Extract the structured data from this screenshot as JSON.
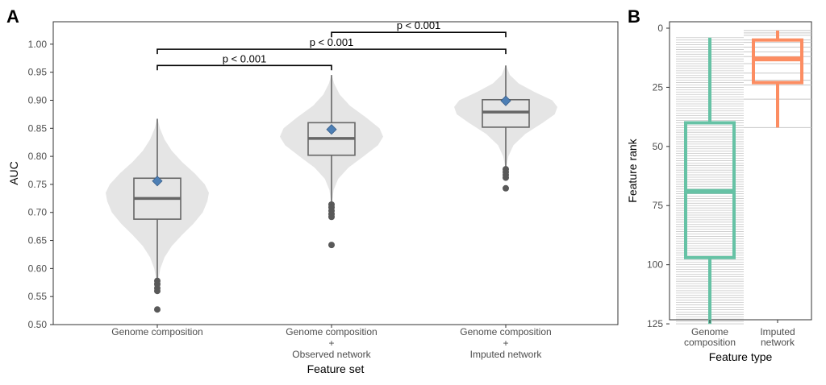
{
  "chart_data": [
    {
      "panel": "A",
      "type": "violin-box",
      "xlabel": "Feature set",
      "ylabel": "AUC",
      "ylim": [
        0.5,
        1.04
      ],
      "yticks": [
        0.5,
        0.55,
        0.6,
        0.65,
        0.7,
        0.75,
        0.8,
        0.85,
        0.9,
        0.95,
        1.0
      ],
      "grid": false,
      "categories": [
        {
          "lines": [
            "Genome composition"
          ]
        },
        {
          "lines": [
            "Genome composition",
            "+",
            "Observed network"
          ]
        },
        {
          "lines": [
            "Genome composition",
            "+",
            "Imputed network"
          ]
        }
      ],
      "series": [
        {
          "box": {
            "q1": 0.688,
            "median": 0.725,
            "q3": 0.761,
            "whisker_low": 0.58,
            "whisker_high": 0.867
          },
          "mean": 0.756,
          "outliers": [
            0.578,
            0.572,
            0.565,
            0.56,
            0.527
          ],
          "violin": [
            [
              0.56,
              0.005
            ],
            [
              0.58,
              0.02
            ],
            [
              0.6,
              0.06
            ],
            [
              0.62,
              0.14
            ],
            [
              0.64,
              0.28
            ],
            [
              0.66,
              0.48
            ],
            [
              0.68,
              0.7
            ],
            [
              0.7,
              0.88
            ],
            [
              0.72,
              0.97
            ],
            [
              0.735,
              1.0
            ],
            [
              0.75,
              0.92
            ],
            [
              0.77,
              0.72
            ],
            [
              0.79,
              0.48
            ],
            [
              0.81,
              0.28
            ],
            [
              0.83,
              0.14
            ],
            [
              0.85,
              0.05
            ],
            [
              0.867,
              0.005
            ]
          ]
        },
        {
          "box": {
            "q1": 0.802,
            "median": 0.832,
            "q3": 0.86,
            "whisker_low": 0.715,
            "whisker_high": 0.945
          },
          "mean": 0.848,
          "outliers": [
            0.714,
            0.709,
            0.703,
            0.697,
            0.692,
            0.642
          ],
          "violin": [
            [
              0.715,
              0.005
            ],
            [
              0.74,
              0.04
            ],
            [
              0.76,
              0.13
            ],
            [
              0.78,
              0.33
            ],
            [
              0.8,
              0.62
            ],
            [
              0.82,
              0.9
            ],
            [
              0.835,
              1.0
            ],
            [
              0.85,
              0.93
            ],
            [
              0.87,
              0.66
            ],
            [
              0.89,
              0.36
            ],
            [
              0.91,
              0.16
            ],
            [
              0.93,
              0.05
            ],
            [
              0.945,
              0.005
            ]
          ]
        },
        {
          "box": {
            "q1": 0.852,
            "median": 0.879,
            "q3": 0.901,
            "whisker_low": 0.778,
            "whisker_high": 0.962
          },
          "mean": 0.899,
          "outliers": [
            0.777,
            0.772,
            0.767,
            0.762,
            0.743
          ],
          "violin": [
            [
              0.778,
              0.005
            ],
            [
              0.8,
              0.05
            ],
            [
              0.82,
              0.15
            ],
            [
              0.84,
              0.38
            ],
            [
              0.86,
              0.72
            ],
            [
              0.875,
              0.95
            ],
            [
              0.888,
              1.0
            ],
            [
              0.9,
              0.9
            ],
            [
              0.915,
              0.55
            ],
            [
              0.93,
              0.25
            ],
            [
              0.945,
              0.08
            ],
            [
              0.962,
              0.005
            ]
          ]
        }
      ],
      "annotations": [
        {
          "from": 0,
          "to": 1,
          "y": 0.962,
          "text": "p < 0.001"
        },
        {
          "from": 0,
          "to": 2,
          "y": 0.991,
          "text": "p < 0.001"
        },
        {
          "from": 1,
          "to": 2,
          "y": 1.021,
          "text": "p < 0.001"
        }
      ],
      "colors": {
        "violin": "#e5e5e5",
        "box_line": "#666666",
        "mean_marker": "#4d7fb5",
        "panel_border": "#333333"
      }
    },
    {
      "panel": "B",
      "type": "box-with-rugs",
      "xlabel": "Feature type",
      "ylabel": "Feature rank",
      "ylim": [
        0,
        126
      ],
      "y_reversed": true,
      "yticks": [
        0,
        25,
        50,
        75,
        100,
        125
      ],
      "categories": [
        {
          "lines": [
            "Genome",
            "composition"
          ]
        },
        {
          "lines": [
            "Imputed",
            "network"
          ]
        }
      ],
      "series": [
        {
          "box": {
            "q1": 40,
            "median": 69,
            "q3": 97,
            "whisker_low": 4,
            "whisker_high": 125
          },
          "rank_start": 4,
          "rank_end": 125,
          "color": "#66c2a5"
        },
        {
          "box": {
            "q1": 5,
            "median": 13,
            "q3": 23,
            "whisker_low": 1,
            "whisker_high": 42
          },
          "ranks": [
            1,
            2,
            3,
            5,
            6,
            8,
            10,
            12,
            15,
            19,
            22,
            24,
            30,
            42
          ],
          "color": "#fc8d62"
        }
      ],
      "colors": {
        "rug": "#c8c8c8",
        "panel_border": "#333333"
      }
    }
  ]
}
